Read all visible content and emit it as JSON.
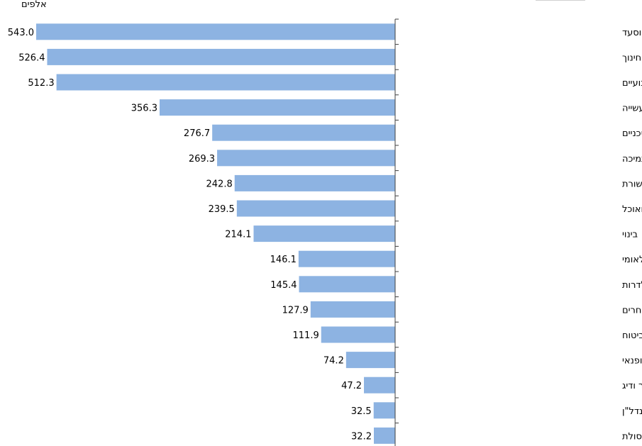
{
  "chart_data": {
    "type": "bar",
    "orientation": "horizontal",
    "unit_label": "אלפים",
    "categories": [
      "שירותי בריאות, רווחה וסעד",
      "חינוך",
      "מסחר סיטוני וקמעוני ותיקון כלי רכב מנועיים",
      "תעשייה",
      "שירותים מקצועיים, מדעיים וטכניים",
      "שירותי ניהול ותמיכה",
      "מידע ותקשורת",
      "שירותי אירוח ואוכל",
      "בינוי",
      "מינהל מקומי, ציבורי וביטחון לאומי",
      "שירותי תחבורה, אחסנה, דואר ובלדרות",
      "שירותים אחרים",
      "שירותים פיננסיים ושירותי ביטוח",
      "אמנות, בידור ופנאי",
      "חקלאות, ייעור ודיג",
      "פעילויות בנדל\"ן",
      "אספקת חשמל ומים, שירותי ביוב וטיהור וטיפול בפסולת"
    ],
    "values": [
      543.0,
      526.4,
      512.3,
      356.3,
      276.7,
      269.3,
      242.8,
      239.5,
      214.1,
      146.1,
      145.4,
      127.9,
      111.9,
      74.2,
      47.2,
      32.5,
      32.2
    ],
    "value_labels": [
      "543.0",
      "526.4",
      "512.3",
      "356.3",
      "276.7",
      "269.3",
      "242.8",
      "239.5",
      "214.1",
      "146.1",
      "145.4",
      "127.9",
      "111.9",
      "74.2",
      "47.2",
      "32.5",
      "32.2"
    ],
    "bar_color": "#8db3e2",
    "xlim": [
      0,
      543
    ],
    "grid": false,
    "legend": "none"
  }
}
